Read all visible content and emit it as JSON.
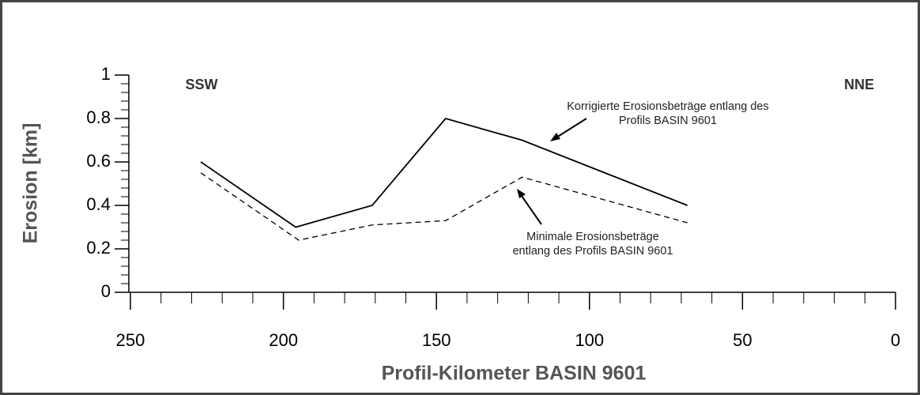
{
  "chart_data": {
    "type": "line",
    "xlabel": "Profil-Kilometer BASIN 9601",
    "ylabel": "Erosion [km]",
    "xlim": [
      250,
      0
    ],
    "xticks": [
      250,
      200,
      150,
      100,
      50,
      0
    ],
    "ylim": [
      0,
      1
    ],
    "yticks": [
      0,
      0.2,
      0.4,
      0.6,
      0.8,
      1
    ],
    "direction_labels": [
      "SSW",
      "NNE"
    ],
    "series": [
      {
        "name": "Korrigierte Erosionsbeträge entlang des Profils BASIN 9601",
        "color": "#000000",
        "style": "solid",
        "x": [
          227,
          196,
          171,
          147,
          122,
          68
        ],
        "values": [
          0.6,
          0.3,
          0.4,
          0.8,
          0.7,
          0.4
        ]
      },
      {
        "name": "Minimale Erosionsbeträge entlang des Profils BASIN 9601",
        "color": "#000000",
        "style": "dashed",
        "x": [
          227,
          195,
          171,
          147,
          122,
          68
        ],
        "values": [
          0.55,
          0.24,
          0.31,
          0.33,
          0.53,
          0.32
        ]
      }
    ],
    "annotations": [
      [
        "Korrigierte Erosionsbeträge entlang des",
        "Profils BASIN 9601"
      ],
      [
        "Minimale Erosionsbeträge",
        "entlang des Profils BASIN 9601"
      ]
    ]
  }
}
